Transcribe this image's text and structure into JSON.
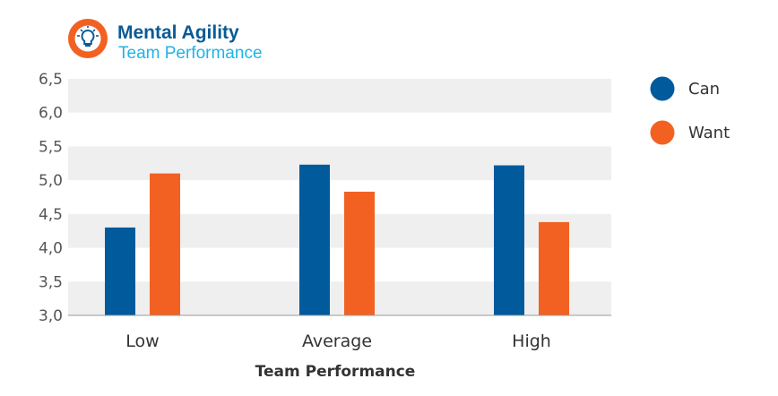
{
  "header": {
    "title": "Mental Agility",
    "subtitle": "Team Performance",
    "icon": "lightbulb-icon"
  },
  "colors": {
    "title": "#0a5a96",
    "subtitle": "#1fb3e6",
    "can": "#005a9c",
    "want": "#f26122",
    "band": "#efefef",
    "icon_bg": "#f26122"
  },
  "chart_data": {
    "type": "bar",
    "title": "",
    "xlabel": "Team Performance",
    "ylabel": "",
    "categories": [
      "Low",
      "Average",
      "High"
    ],
    "series": [
      {
        "name": "Can",
        "values": [
          4.3,
          5.23,
          5.22
        ]
      },
      {
        "name": "Want",
        "values": [
          5.1,
          4.83,
          4.38
        ]
      }
    ],
    "ylim": [
      3.0,
      6.5
    ],
    "yticks": [
      "3,0",
      "3,5",
      "4,0",
      "4,5",
      "5,0",
      "5,5",
      "6,0",
      "6,5"
    ],
    "grid": "alternating-bands",
    "legend_position": "top-right"
  }
}
